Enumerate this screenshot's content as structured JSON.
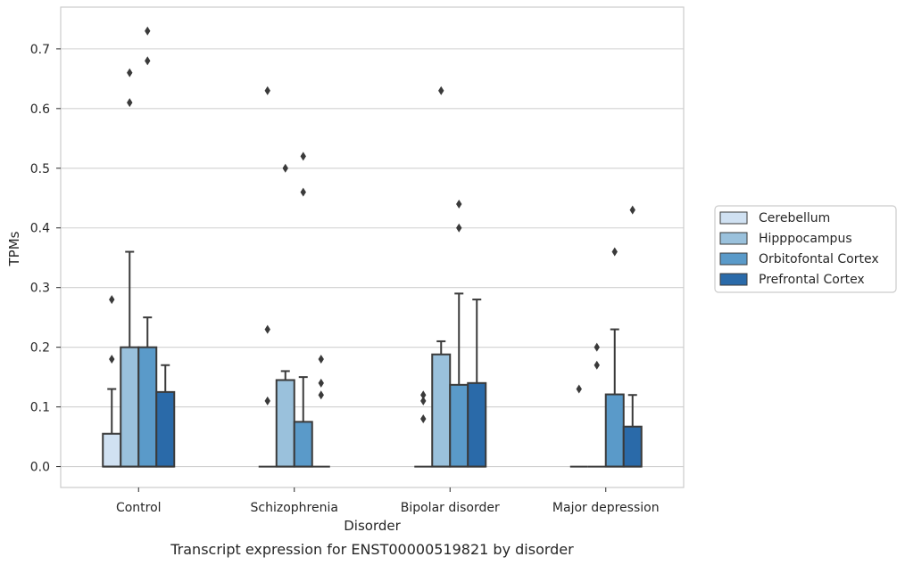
{
  "chart_data": {
    "type": "box",
    "caption": "Transcript expression for ENST00000519821 by disorder",
    "xlabel": "Disorder",
    "ylabel": "TPMs",
    "ylim": [
      -0.035,
      0.77
    ],
    "yticks": [
      0.0,
      0.1,
      0.2,
      0.3,
      0.4,
      0.5,
      0.6,
      0.7
    ],
    "ytick_labels": [
      "0.0",
      "0.1",
      "0.2",
      "0.3",
      "0.4",
      "0.5",
      "0.6",
      "0.7"
    ],
    "grid": "horizontal",
    "legend_position": "right",
    "categories": [
      "Control",
      "Schizophrenia",
      "Bipolar disorder",
      "Major depression"
    ],
    "series": [
      {
        "name": "Cerebellum",
        "color": "#d0e1f2",
        "boxes": [
          {
            "q1": 0.0,
            "median": 0.0,
            "q3": 0.055,
            "whisker_low": 0.0,
            "whisker_high": 0.13,
            "outliers": [
              0.18,
              0.28
            ]
          },
          {
            "q1": 0.0,
            "median": 0.0,
            "q3": 0.0,
            "whisker_low": 0.0,
            "whisker_high": 0.0,
            "outliers": [
              0.11,
              0.23,
              0.63
            ]
          },
          {
            "q1": 0.0,
            "median": 0.0,
            "q3": 0.0,
            "whisker_low": 0.0,
            "whisker_high": 0.0,
            "outliers": [
              0.08,
              0.11,
              0.12
            ]
          },
          {
            "q1": 0.0,
            "median": 0.0,
            "q3": 0.0,
            "whisker_low": 0.0,
            "whisker_high": 0.0,
            "outliers": [
              0.13
            ]
          }
        ]
      },
      {
        "name": "Hipppocampus",
        "color": "#9ac1dc",
        "boxes": [
          {
            "q1": 0.0,
            "median": 0.0,
            "q3": 0.2,
            "whisker_low": 0.0,
            "whisker_high": 0.36,
            "outliers": [
              0.61,
              0.66
            ]
          },
          {
            "q1": 0.0,
            "median": 0.0,
            "q3": 0.145,
            "whisker_low": 0.0,
            "whisker_high": 0.16,
            "outliers": [
              0.5
            ]
          },
          {
            "q1": 0.0,
            "median": 0.0,
            "q3": 0.188,
            "whisker_low": 0.0,
            "whisker_high": 0.21,
            "outliers": [
              0.63
            ]
          },
          {
            "q1": 0.0,
            "median": 0.0,
            "q3": 0.0,
            "whisker_low": 0.0,
            "whisker_high": 0.0,
            "outliers": [
              0.17,
              0.2
            ]
          }
        ]
      },
      {
        "name": "Orbitofontal Cortex",
        "color": "#5a9ac9",
        "boxes": [
          {
            "q1": 0.0,
            "median": 0.0,
            "q3": 0.2,
            "whisker_low": 0.0,
            "whisker_high": 0.25,
            "outliers": [
              0.68,
              0.73
            ]
          },
          {
            "q1": 0.0,
            "median": 0.0,
            "q3": 0.075,
            "whisker_low": 0.0,
            "whisker_high": 0.15,
            "outliers": [
              0.46,
              0.52
            ]
          },
          {
            "q1": 0.0,
            "median": 0.0,
            "q3": 0.137,
            "whisker_low": 0.0,
            "whisker_high": 0.29,
            "outliers": [
              0.4,
              0.44
            ]
          },
          {
            "q1": 0.0,
            "median": 0.0,
            "q3": 0.121,
            "whisker_low": 0.0,
            "whisker_high": 0.23,
            "outliers": [
              0.36
            ]
          }
        ]
      },
      {
        "name": "Prefrontal Cortex",
        "color": "#2a6aa9",
        "boxes": [
          {
            "q1": 0.0,
            "median": 0.0,
            "q3": 0.125,
            "whisker_low": 0.0,
            "whisker_high": 0.17,
            "outliers": []
          },
          {
            "q1": 0.0,
            "median": 0.0,
            "q3": 0.0,
            "whisker_low": 0.0,
            "whisker_high": 0.0,
            "outliers": [
              0.12,
              0.14,
              0.18
            ]
          },
          {
            "q1": 0.0,
            "median": 0.0,
            "q3": 0.14,
            "whisker_low": 0.0,
            "whisker_high": 0.28,
            "outliers": []
          },
          {
            "q1": 0.0,
            "median": 0.0,
            "q3": 0.067,
            "whisker_low": 0.0,
            "whisker_high": 0.12,
            "outliers": [
              0.43
            ]
          }
        ]
      }
    ]
  }
}
